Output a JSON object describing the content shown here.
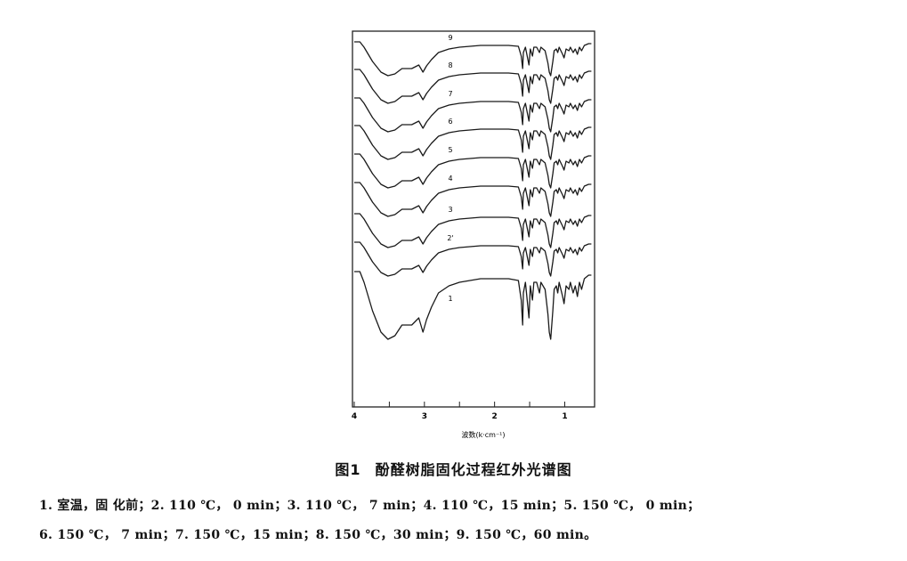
{
  "figure": {
    "number": "图1",
    "title": "酚醛树脂固化过程红外光谱图",
    "legend_lines": [
      "1. 室温，固 化前；2. 110 ℃， 0 min；3. 110 ℃， 7 min；4. 110 ℃，15 min；5. 150 ℃， 0 min；",
      "6. 150 ℃， 7 min；7. 150 ℃，15 min；8. 150 ℃，30 min；9. 150 ℃，60 min。"
    ]
  },
  "chart_data": {
    "type": "line",
    "xlabel": "波数(k·cm⁻¹)",
    "x_ticks": [
      "4",
      "3",
      "2",
      "1"
    ],
    "x_range_kcm": [
      4.0,
      0.6
    ],
    "series": [
      {
        "name": "9"
      },
      {
        "name": "8"
      },
      {
        "name": "7"
      },
      {
        "name": "6"
      },
      {
        "name": "5"
      },
      {
        "name": "4"
      },
      {
        "name": "3"
      },
      {
        "name": "2'"
      },
      {
        "name": "1"
      }
    ]
  }
}
